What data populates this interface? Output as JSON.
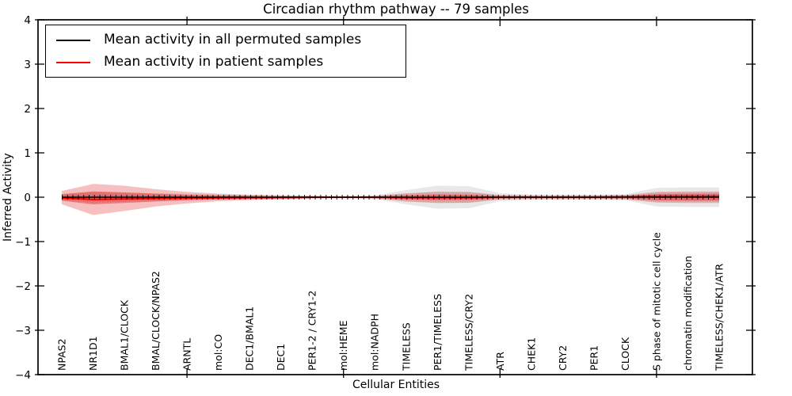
{
  "title": "Circadian rhythm pathway -- 79 samples",
  "axes": {
    "xlabel": "Cellular Entities",
    "ylabel": "Inferred Activity",
    "ytick_labels": [
      "4",
      "3",
      "2",
      "1",
      "0",
      "−1",
      "−2",
      "−3",
      "−4"
    ]
  },
  "legend": {
    "entries": [
      {
        "label": "Mean activity in all permuted samples",
        "color": "#000000"
      },
      {
        "label": "Mean activity in patient samples",
        "color": "#ff0000"
      }
    ]
  },
  "chart_data": {
    "type": "line",
    "title": "Circadian rhythm pathway -- 79 samples",
    "xlabel": "Cellular Entities",
    "ylabel": "Inferred Activity",
    "ylim": [
      -4,
      4
    ],
    "grid": false,
    "legend_position": "upper left",
    "background": "#ffffff",
    "categories": [
      "NPAS2",
      "NR1D1",
      "BMAL1/CLOCK",
      "BMAL/CLOCK/NPAS2",
      "ARNTL",
      "mol:CO",
      "DEC1/BMAL1",
      "DEC1",
      "PER1-2 / CRY1-2",
      "mol:HEME",
      "mol:NADPH",
      "TIMELESS",
      "PER1/TIMELESS",
      "TIMELESS/CRY2",
      "ATR",
      "CHEK1",
      "CRY2",
      "PER1",
      "CLOCK",
      "S phase of mitotic cell cycle",
      "chromatin modification",
      "TIMELESS/CHEK1/ATR"
    ],
    "series": [
      {
        "name": "Mean activity in all permuted samples",
        "color": "#000000",
        "marker": "vertical-tick",
        "values": [
          0,
          0,
          0,
          0,
          0,
          0,
          0,
          0,
          0,
          0,
          0,
          0,
          0,
          0,
          0,
          0,
          0,
          0,
          0,
          0,
          0,
          0
        ]
      },
      {
        "name": "Mean activity in patient samples",
        "color": "#ff0000",
        "marker": "none",
        "values": [
          -0.02,
          -0.05,
          -0.04,
          -0.03,
          -0.02,
          -0.015,
          -0.01,
          -0.008,
          0,
          0,
          0,
          -0.01,
          -0.01,
          -0.01,
          0,
          0,
          0,
          0,
          0.01,
          0.02,
          0.02,
          0.02
        ]
      }
    ],
    "bands": [
      {
        "name": "permuted-spread-outer",
        "color": "#e8e8e8",
        "upper": [
          0.07,
          0.12,
          0.1,
          0.09,
          0.08,
          0.06,
          0.05,
          0.04,
          0.03,
          0.025,
          0.04,
          0.16,
          0.26,
          0.25,
          0.09,
          0.06,
          0.055,
          0.055,
          0.07,
          0.21,
          0.22,
          0.22
        ],
        "lower": [
          -0.07,
          -0.12,
          -0.1,
          -0.09,
          -0.08,
          -0.06,
          -0.05,
          -0.04,
          -0.03,
          -0.025,
          -0.04,
          -0.16,
          -0.26,
          -0.25,
          -0.09,
          -0.06,
          -0.055,
          -0.055,
          -0.07,
          -0.21,
          -0.22,
          -0.22
        ]
      },
      {
        "name": "permuted-spread-inner",
        "color": "#d8d8d8",
        "upper": [
          0.035,
          0.06,
          0.05,
          0.045,
          0.04,
          0.03,
          0.025,
          0.02,
          0.015,
          0.012,
          0.02,
          0.08,
          0.13,
          0.125,
          0.045,
          0.03,
          0.028,
          0.028,
          0.035,
          0.105,
          0.11,
          0.11
        ],
        "lower": [
          -0.035,
          -0.06,
          -0.05,
          -0.045,
          -0.04,
          -0.03,
          -0.025,
          -0.02,
          -0.015,
          -0.012,
          -0.02,
          -0.08,
          -0.13,
          -0.125,
          -0.045,
          -0.03,
          -0.028,
          -0.028,
          -0.035,
          -0.105,
          -0.11,
          -0.11
        ]
      },
      {
        "name": "patient-spread-outer",
        "color": "rgba(222,30,30,0.28)",
        "upper": [
          0.14,
          0.3,
          0.26,
          0.18,
          0.12,
          0.08,
          0.055,
          0.04,
          0.03,
          0.02,
          0.03,
          0.09,
          0.12,
          0.115,
          0.05,
          0.04,
          0.04,
          0.04,
          0.05,
          0.12,
          0.13,
          0.13
        ],
        "lower": [
          -0.16,
          -0.4,
          -0.31,
          -0.21,
          -0.14,
          -0.09,
          -0.065,
          -0.045,
          -0.03,
          -0.02,
          -0.03,
          -0.1,
          -0.13,
          -0.125,
          -0.05,
          -0.04,
          -0.04,
          -0.04,
          -0.05,
          -0.12,
          -0.13,
          -0.13
        ]
      },
      {
        "name": "patient-spread-inner",
        "color": "rgba(222,30,30,0.42)",
        "upper": [
          0.07,
          0.13,
          0.11,
          0.08,
          0.055,
          0.04,
          0.03,
          0.02,
          0.015,
          0.01,
          0.015,
          0.045,
          0.06,
          0.055,
          0.025,
          0.02,
          0.02,
          0.02,
          0.025,
          0.07,
          0.075,
          0.075
        ],
        "lower": [
          -0.08,
          -0.16,
          -0.13,
          -0.095,
          -0.065,
          -0.05,
          -0.035,
          -0.025,
          -0.015,
          -0.01,
          -0.015,
          -0.05,
          -0.065,
          -0.06,
          -0.025,
          -0.02,
          -0.02,
          -0.02,
          -0.025,
          -0.07,
          -0.075,
          -0.075
        ]
      }
    ],
    "yticks": [
      4,
      3,
      2,
      1,
      0,
      -1,
      -2,
      -3,
      -4
    ]
  }
}
